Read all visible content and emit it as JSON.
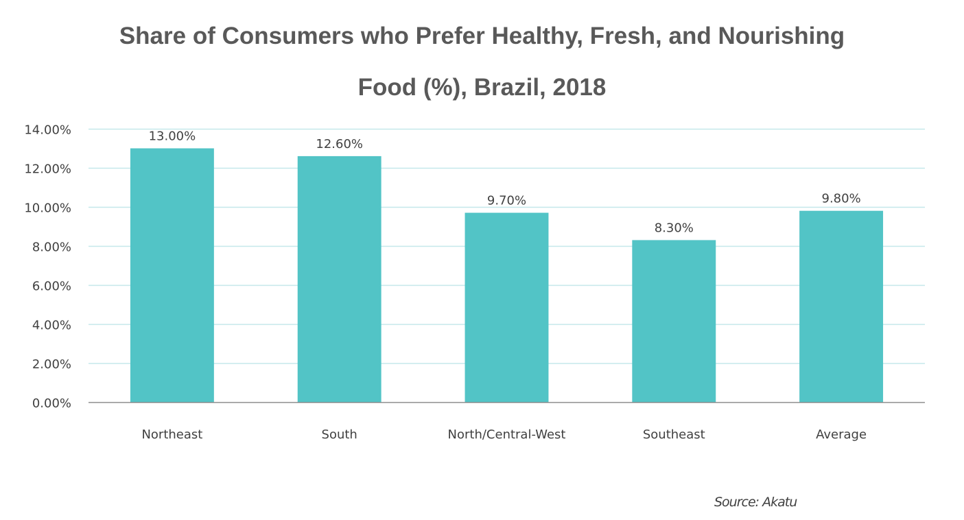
{
  "chart_data": {
    "type": "bar",
    "title_lines": [
      "Share of Consumers who Prefer Healthy, Fresh, and Nourishing",
      "Food (%), Brazil, 2018"
    ],
    "title": "Share of Consumers who Prefer Healthy, Fresh, and Nourishing Food (%), Brazil, 2018",
    "xlabel": "",
    "ylabel": "",
    "categories": [
      "Northeast",
      "South",
      "North/Central-West",
      "Southeast",
      "Average"
    ],
    "values": [
      13.0,
      12.6,
      9.7,
      8.3,
      9.8
    ],
    "data_labels": [
      "13.00%",
      "12.60%",
      "9.70%",
      "8.30%",
      "9.80%"
    ],
    "ylim": [
      0,
      14
    ],
    "yticks": [
      0,
      2,
      4,
      6,
      8,
      10,
      12,
      14
    ],
    "ytick_labels": [
      "0.00%",
      "2.00%",
      "4.00%",
      "6.00%",
      "8.00%",
      "10.00%",
      "12.00%",
      "14.00%"
    ],
    "grid": true,
    "legend": "none",
    "colors": {
      "bar": "#52C4C6",
      "grid": "#C5E8EA",
      "axis": "#8C8C8C",
      "text": "#404040",
      "title": "#595959"
    }
  },
  "source": "Source: Akatu"
}
